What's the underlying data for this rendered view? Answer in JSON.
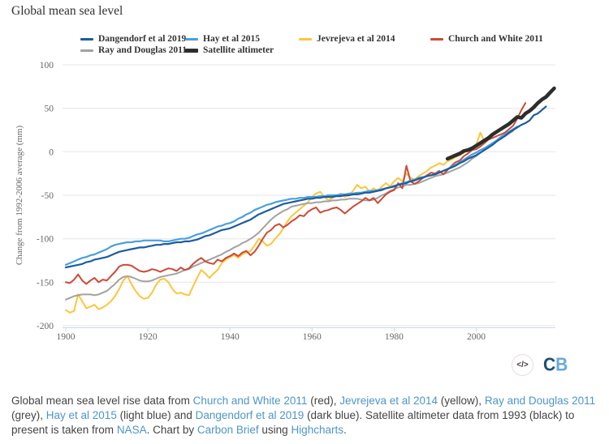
{
  "header": {
    "title": "Global mean sea level"
  },
  "legend": {
    "items": [
      {
        "label": "Dangendorf et al 2019",
        "color": "#1d5c9e",
        "thick": false
      },
      {
        "label": "Hay et al 2015",
        "color": "#4aa0dd",
        "thick": false
      },
      {
        "label": "Jevrejeva et al 2014",
        "color": "#fcc63b",
        "thick": false
      },
      {
        "label": "Church and White 2011",
        "color": "#cc4a38",
        "thick": false
      },
      {
        "label": "Ray and Douglas 2011",
        "color": "#a2a2a2",
        "thick": false
      },
      {
        "label": "Satellite altimeter",
        "color": "#2d2d2d",
        "thick": true
      }
    ]
  },
  "chart_data": {
    "type": "line",
    "title": "Global mean sea level",
    "xlabel": "",
    "ylabel": "Change from 1992-2006 average (mm)",
    "ylim": [
      -200,
      100
    ],
    "xlim": [
      1899.2,
      2019.3
    ],
    "yticks": [
      100,
      50,
      0,
      -50,
      -100,
      -150,
      -200
    ],
    "xticks": [
      1900,
      1920,
      1940,
      1960,
      1980,
      2000
    ],
    "grid": "horizontal",
    "legend_position": "top",
    "colors": {
      "grid": "#e6e6e6",
      "axis_line": "#ccd6eb",
      "tick_label": "#666666"
    },
    "series": [
      {
        "name": "Jevrejeva et al 2014",
        "color": "#fcc63b",
        "line_width": 2,
        "start_year": 1900,
        "values": [
          -182,
          -185,
          -183,
          -164,
          -172,
          -180,
          -178,
          -176,
          -181,
          -179,
          -176,
          -172,
          -166,
          -158,
          -148,
          -143,
          -152,
          -160,
          -166,
          -169,
          -168,
          -162,
          -153,
          -147,
          -146,
          -150,
          -158,
          -163,
          -162,
          -164,
          -165,
          -155,
          -145,
          -136,
          -140,
          -145,
          -140,
          -136,
          -128,
          -124,
          -121,
          -119,
          -122,
          -118,
          -116,
          -114,
          -108,
          -100,
          -103,
          -108,
          -106,
          -100,
          -95,
          -88,
          -80,
          -74,
          -70,
          -66,
          -62,
          -58,
          -52,
          -48,
          -46,
          -52,
          -56,
          -53,
          -50,
          -48,
          -52,
          -50,
          -45,
          -38,
          -42,
          -40,
          -46,
          -42,
          -45,
          -40,
          -36,
          -40,
          -34,
          -30,
          -34,
          -25,
          -30,
          -32,
          -28,
          -25,
          -22,
          -18,
          -16,
          -13,
          -15,
          -11,
          -9,
          -6,
          -4,
          -1,
          2,
          5,
          8,
          22,
          12,
          15
        ]
      },
      {
        "name": "Ray and Douglas 2011",
        "color": "#a2a2a2",
        "line_width": 2,
        "start_year": 1900,
        "values": [
          -170,
          -168,
          -166,
          -165,
          -164,
          -164,
          -164,
          -165,
          -164,
          -162,
          -160,
          -156,
          -152,
          -147,
          -144,
          -143,
          -144,
          -146,
          -148,
          -149,
          -149,
          -148,
          -146,
          -144,
          -143,
          -142,
          -141,
          -140,
          -138,
          -136,
          -135,
          -132,
          -130,
          -128,
          -126,
          -124,
          -122,
          -120,
          -118,
          -115,
          -113,
          -110,
          -108,
          -105,
          -103,
          -100,
          -97,
          -93,
          -88,
          -83,
          -78,
          -74,
          -71,
          -68,
          -66,
          -63,
          -62,
          -61,
          -60,
          -59,
          -59,
          -58,
          -58,
          -57,
          -57,
          -56,
          -56,
          -55,
          -55,
          -54,
          -54,
          -54,
          -55,
          -56,
          -56,
          -55,
          -53,
          -50,
          -48,
          -45,
          -43,
          -41,
          -40,
          -38,
          -38,
          -37,
          -36,
          -34,
          -32,
          -30,
          -28,
          -27,
          -26,
          -24,
          -22,
          -20,
          -18,
          -15,
          -12,
          -8,
          -5,
          -1,
          2,
          5,
          8,
          12,
          15,
          18,
          21,
          24
        ]
      },
      {
        "name": "Church and White 2011",
        "color": "#cc4a38",
        "line_width": 2,
        "start_year": 1900,
        "values": [
          -150,
          -151,
          -147,
          -141,
          -148,
          -152,
          -148,
          -145,
          -150,
          -147,
          -148,
          -143,
          -138,
          -132,
          -130,
          -130,
          -131,
          -134,
          -137,
          -138,
          -137,
          -135,
          -136,
          -138,
          -136,
          -134,
          -135,
          -137,
          -133,
          -136,
          -134,
          -129,
          -125,
          -122,
          -126,
          -128,
          -129,
          -124,
          -126,
          -122,
          -120,
          -117,
          -120,
          -116,
          -114,
          -119,
          -115,
          -108,
          -100,
          -93,
          -90,
          -85,
          -83,
          -87,
          -84,
          -80,
          -77,
          -73,
          -74,
          -69,
          -66,
          -64,
          -70,
          -68,
          -67,
          -65,
          -64,
          -67,
          -71,
          -67,
          -63,
          -60,
          -57,
          -53,
          -56,
          -53,
          -59,
          -54,
          -49,
          -46,
          -44,
          -36,
          -42,
          -16,
          -34,
          -37,
          -34,
          -30,
          -27,
          -24,
          -25,
          -22,
          -26,
          -21,
          -16,
          -12,
          -10,
          -5,
          -2,
          2,
          3,
          6,
          10,
          14,
          16,
          18,
          20,
          22,
          26,
          30,
          38,
          48,
          56
        ]
      },
      {
        "name": "Hay et al 2015",
        "color": "#4aa0dd",
        "line_width": 2.2,
        "start_year": 1900,
        "values": [
          -130,
          -128,
          -126,
          -124,
          -122,
          -121,
          -119,
          -118,
          -116,
          -114,
          -112,
          -109,
          -107,
          -106,
          -105,
          -104,
          -104,
          -103,
          -103,
          -102,
          -102,
          -102,
          -102,
          -102,
          -103,
          -103,
          -102,
          -101,
          -100,
          -100,
          -99,
          -97,
          -95,
          -94,
          -92,
          -90,
          -88,
          -86,
          -85,
          -83,
          -82,
          -80,
          -77,
          -75,
          -72,
          -70,
          -67,
          -65,
          -63,
          -61,
          -60,
          -58,
          -57,
          -56,
          -55,
          -54,
          -54,
          -53,
          -53,
          -52,
          -52,
          -52,
          -51,
          -51,
          -50,
          -50,
          -50,
          -49,
          -49,
          -48,
          -48,
          -47,
          -47,
          -46,
          -45,
          -45,
          -44,
          -43,
          -42,
          -41,
          -39,
          -38,
          -36,
          -35,
          -33,
          -32,
          -30,
          -29,
          -28,
          -27,
          -26,
          -24,
          -22,
          -20,
          -17,
          -15,
          -12,
          -9,
          -6,
          -3,
          -1,
          2,
          4,
          7,
          10,
          13,
          17,
          20,
          23,
          26,
          29
        ]
      },
      {
        "name": "Dangendorf et al 2019",
        "color": "#1d5c9e",
        "line_width": 2.2,
        "start_year": 1900,
        "values": [
          -133,
          -132,
          -131,
          -130,
          -129,
          -127,
          -126,
          -124,
          -123,
          -122,
          -121,
          -119,
          -117,
          -115,
          -114,
          -113,
          -112,
          -111,
          -110,
          -110,
          -109,
          -108,
          -107,
          -107,
          -106,
          -106,
          -105,
          -104,
          -104,
          -103,
          -103,
          -102,
          -101,
          -99,
          -97,
          -96,
          -94,
          -92,
          -90,
          -89,
          -88,
          -86,
          -84,
          -82,
          -80,
          -78,
          -75,
          -72,
          -70,
          -68,
          -66,
          -64,
          -62,
          -60,
          -59,
          -58,
          -57,
          -56,
          -55,
          -54,
          -54,
          -53,
          -53,
          -52,
          -52,
          -52,
          -51,
          -51,
          -50,
          -50,
          -49,
          -49,
          -48,
          -47,
          -47,
          -46,
          -45,
          -44,
          -42,
          -41,
          -40,
          -38,
          -37,
          -36,
          -34,
          -33,
          -31,
          -30,
          -28,
          -27,
          -26,
          -24,
          -22,
          -20,
          -18,
          -16,
          -13,
          -11,
          -8,
          -6,
          -4,
          -1,
          2,
          5,
          8,
          12,
          15,
          18,
          22,
          25,
          28,
          31,
          33,
          36,
          42,
          44,
          48,
          52
        ]
      },
      {
        "name": "Satellite altimeter",
        "color": "#2d2d2d",
        "line_width": 4.5,
        "start_year": 1993,
        "values": [
          -8,
          -6,
          -4,
          -2,
          1,
          2,
          4,
          7,
          10,
          13,
          16,
          20,
          23,
          26,
          29,
          32,
          36,
          40,
          39,
          44,
          47,
          51,
          56,
          60,
          63,
          68,
          73
        ]
      }
    ]
  },
  "branding": {
    "embed_label": "</>",
    "logo": {
      "c": "C",
      "c_color": "#1d4f76",
      "b": "B",
      "b_color": "#6aaad7"
    }
  },
  "footer": {
    "link_color": "#4e95c9",
    "segments": [
      {
        "t": "Global mean sea level rise data from ",
        "link": false
      },
      {
        "t": "Church and White 2011",
        "link": true
      },
      {
        "t": " (red), ",
        "link": false
      },
      {
        "t": "Jevrejeva et al 2014",
        "link": true
      },
      {
        "t": " (yellow), ",
        "link": false
      },
      {
        "t": "Ray and Douglas 2011",
        "link": true
      },
      {
        "t": " (grey), ",
        "link": false
      },
      {
        "t": "Hay et al 2015",
        "link": true
      },
      {
        "t": " (light blue) and ",
        "link": false
      },
      {
        "t": "Dangendorf et al 2019",
        "link": true
      },
      {
        "t": " (dark blue). Satellite altimeter data from 1993 (black) to present is taken from ",
        "link": false
      },
      {
        "t": "NASA",
        "link": true
      },
      {
        "t": ". Chart by ",
        "link": false
      },
      {
        "t": "Carbon Brief",
        "link": true
      },
      {
        "t": " using ",
        "link": false
      },
      {
        "t": "Highcharts",
        "link": true
      },
      {
        "t": ".",
        "link": false
      }
    ]
  }
}
